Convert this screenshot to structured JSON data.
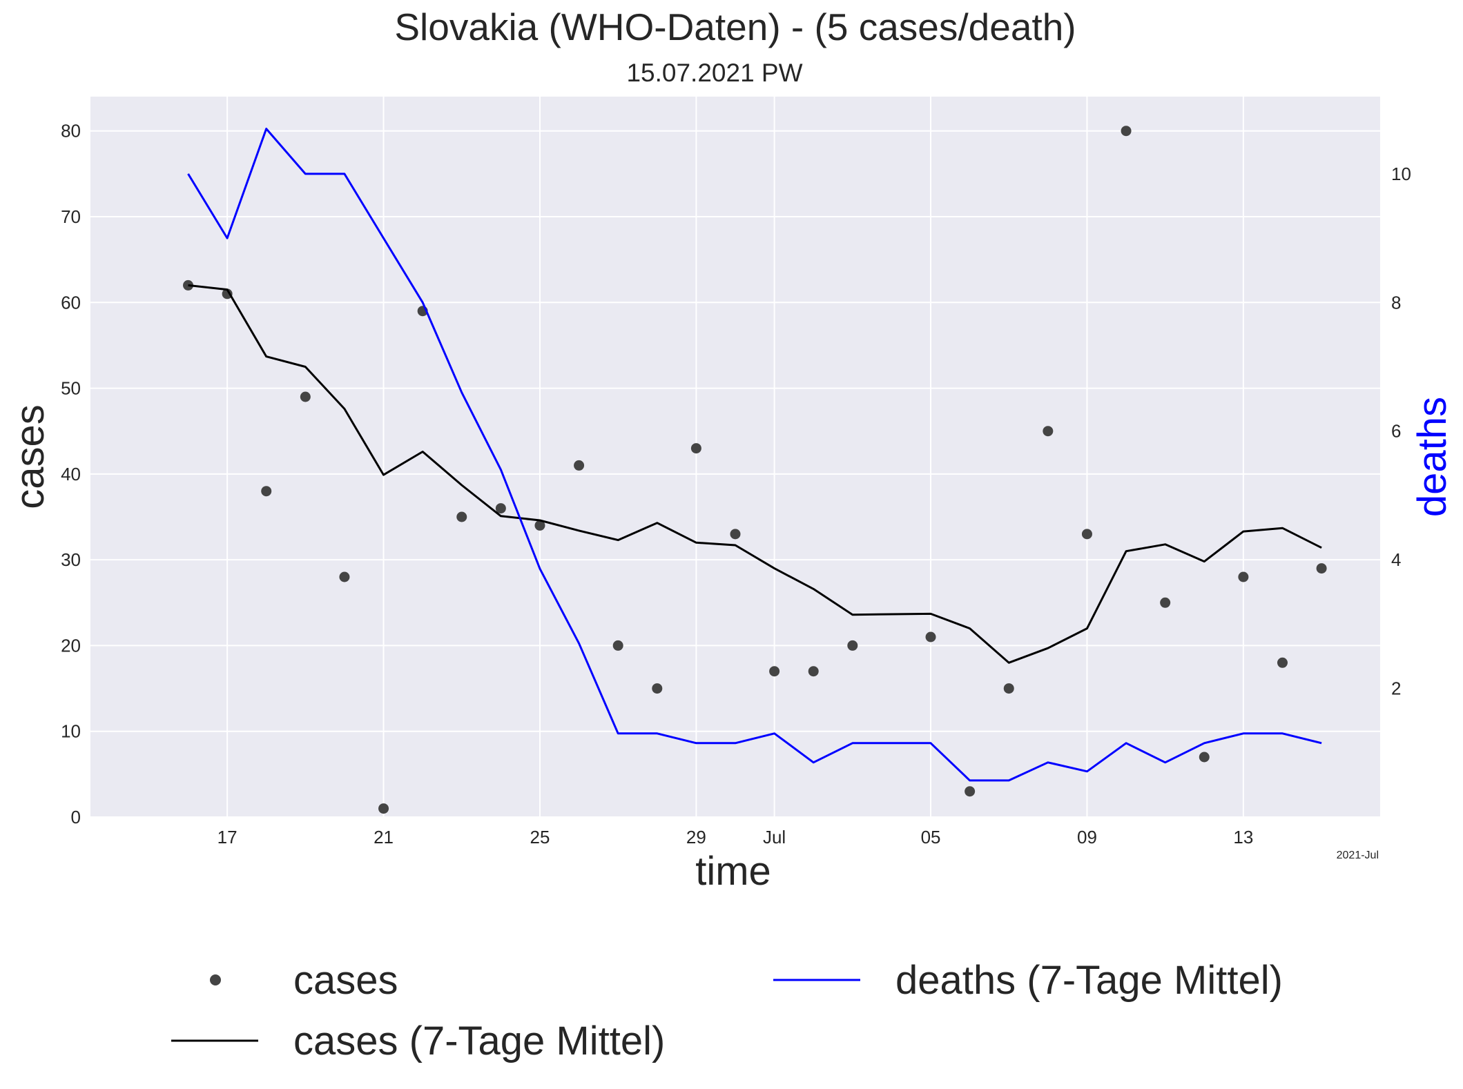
{
  "chart_data": {
    "type": "line",
    "title": "Slovakia (WHO-Daten) - (5 cases/death)",
    "subtitle": "15.07.2021 PW",
    "xlabel": "time",
    "ylabel_left": "cases",
    "ylabel_right": "deaths",
    "x_offset_label": "2021-Jul",
    "x": [
      "2021-06-16",
      "2021-06-17",
      "2021-06-18",
      "2021-06-19",
      "2021-06-20",
      "2021-06-21",
      "2021-06-22",
      "2021-06-23",
      "2021-06-24",
      "2021-06-25",
      "2021-06-26",
      "2021-06-27",
      "2021-06-28",
      "2021-06-29",
      "2021-06-30",
      "2021-07-01",
      "2021-07-02",
      "2021-07-03",
      "2021-07-04",
      "2021-07-05",
      "2021-07-06",
      "2021-07-07",
      "2021-07-08",
      "2021-07-09",
      "2021-07-10",
      "2021-07-11",
      "2021-07-12",
      "2021-07-13",
      "2021-07-14",
      "2021-07-15"
    ],
    "x_ticks": [
      {
        "date": "2021-06-17",
        "label": "17"
      },
      {
        "date": "2021-06-21",
        "label": "21"
      },
      {
        "date": "2021-06-25",
        "label": "25"
      },
      {
        "date": "2021-06-29",
        "label": "29"
      },
      {
        "date": "2021-07-01",
        "label": "Jul"
      },
      {
        "date": "2021-07-05",
        "label": "05"
      },
      {
        "date": "2021-07-09",
        "label": "09"
      },
      {
        "date": "2021-07-13",
        "label": "13"
      }
    ],
    "xlim": [
      "2021-06-13 12:00",
      "2021-07-16 12:00"
    ],
    "ylim_left": [
      0,
      84
    ],
    "yticks_left": [
      0,
      10,
      20,
      30,
      40,
      50,
      60,
      70,
      80
    ],
    "ylim_right": [
      0,
      11.2
    ],
    "yticks_right": [
      2,
      4,
      6,
      8,
      10
    ],
    "grid": true,
    "legend_position": "bottom",
    "series": [
      {
        "name": "cases",
        "style": "points",
        "axis": "left",
        "color": "#444444",
        "values": [
          62,
          61,
          38,
          49,
          28,
          1,
          59,
          35,
          36,
          34,
          41,
          20,
          15,
          43,
          33,
          17,
          17,
          20,
          null,
          21,
          3,
          15,
          45,
          33,
          80,
          25,
          7,
          28,
          18,
          29
        ]
      },
      {
        "name": "cases (7-Tage Mittel)",
        "style": "line",
        "axis": "left",
        "color": "#000000",
        "values": [
          62.0,
          61.5,
          53.7,
          52.5,
          47.6,
          39.9,
          42.6,
          38.7,
          35.1,
          34.6,
          33.4,
          32.3,
          34.3,
          32.0,
          31.7,
          29.0,
          26.6,
          23.6,
          null,
          23.7,
          22.0,
          18.0,
          19.7,
          22.0,
          31.0,
          31.8,
          29.8,
          33.3,
          33.7,
          31.4
        ]
      },
      {
        "name": "deaths (7-Tage Mittel)",
        "style": "line",
        "axis": "right",
        "color": "#0000ff",
        "values": [
          10.0,
          9.0,
          10.7,
          10.0,
          10.0,
          9.0,
          8.0,
          6.6,
          5.4,
          3.86,
          2.7,
          1.3,
          1.3,
          1.15,
          1.15,
          1.3,
          0.85,
          1.15,
          null,
          1.15,
          0.57,
          0.57,
          0.85,
          0.71,
          1.15,
          0.85,
          1.15,
          1.3,
          1.3,
          1.15
        ]
      }
    ]
  },
  "colors": {
    "plot_background": "#eaeaf2",
    "grid": "#ffffff",
    "text": "#262626",
    "deaths_axis": "#0000ff"
  }
}
